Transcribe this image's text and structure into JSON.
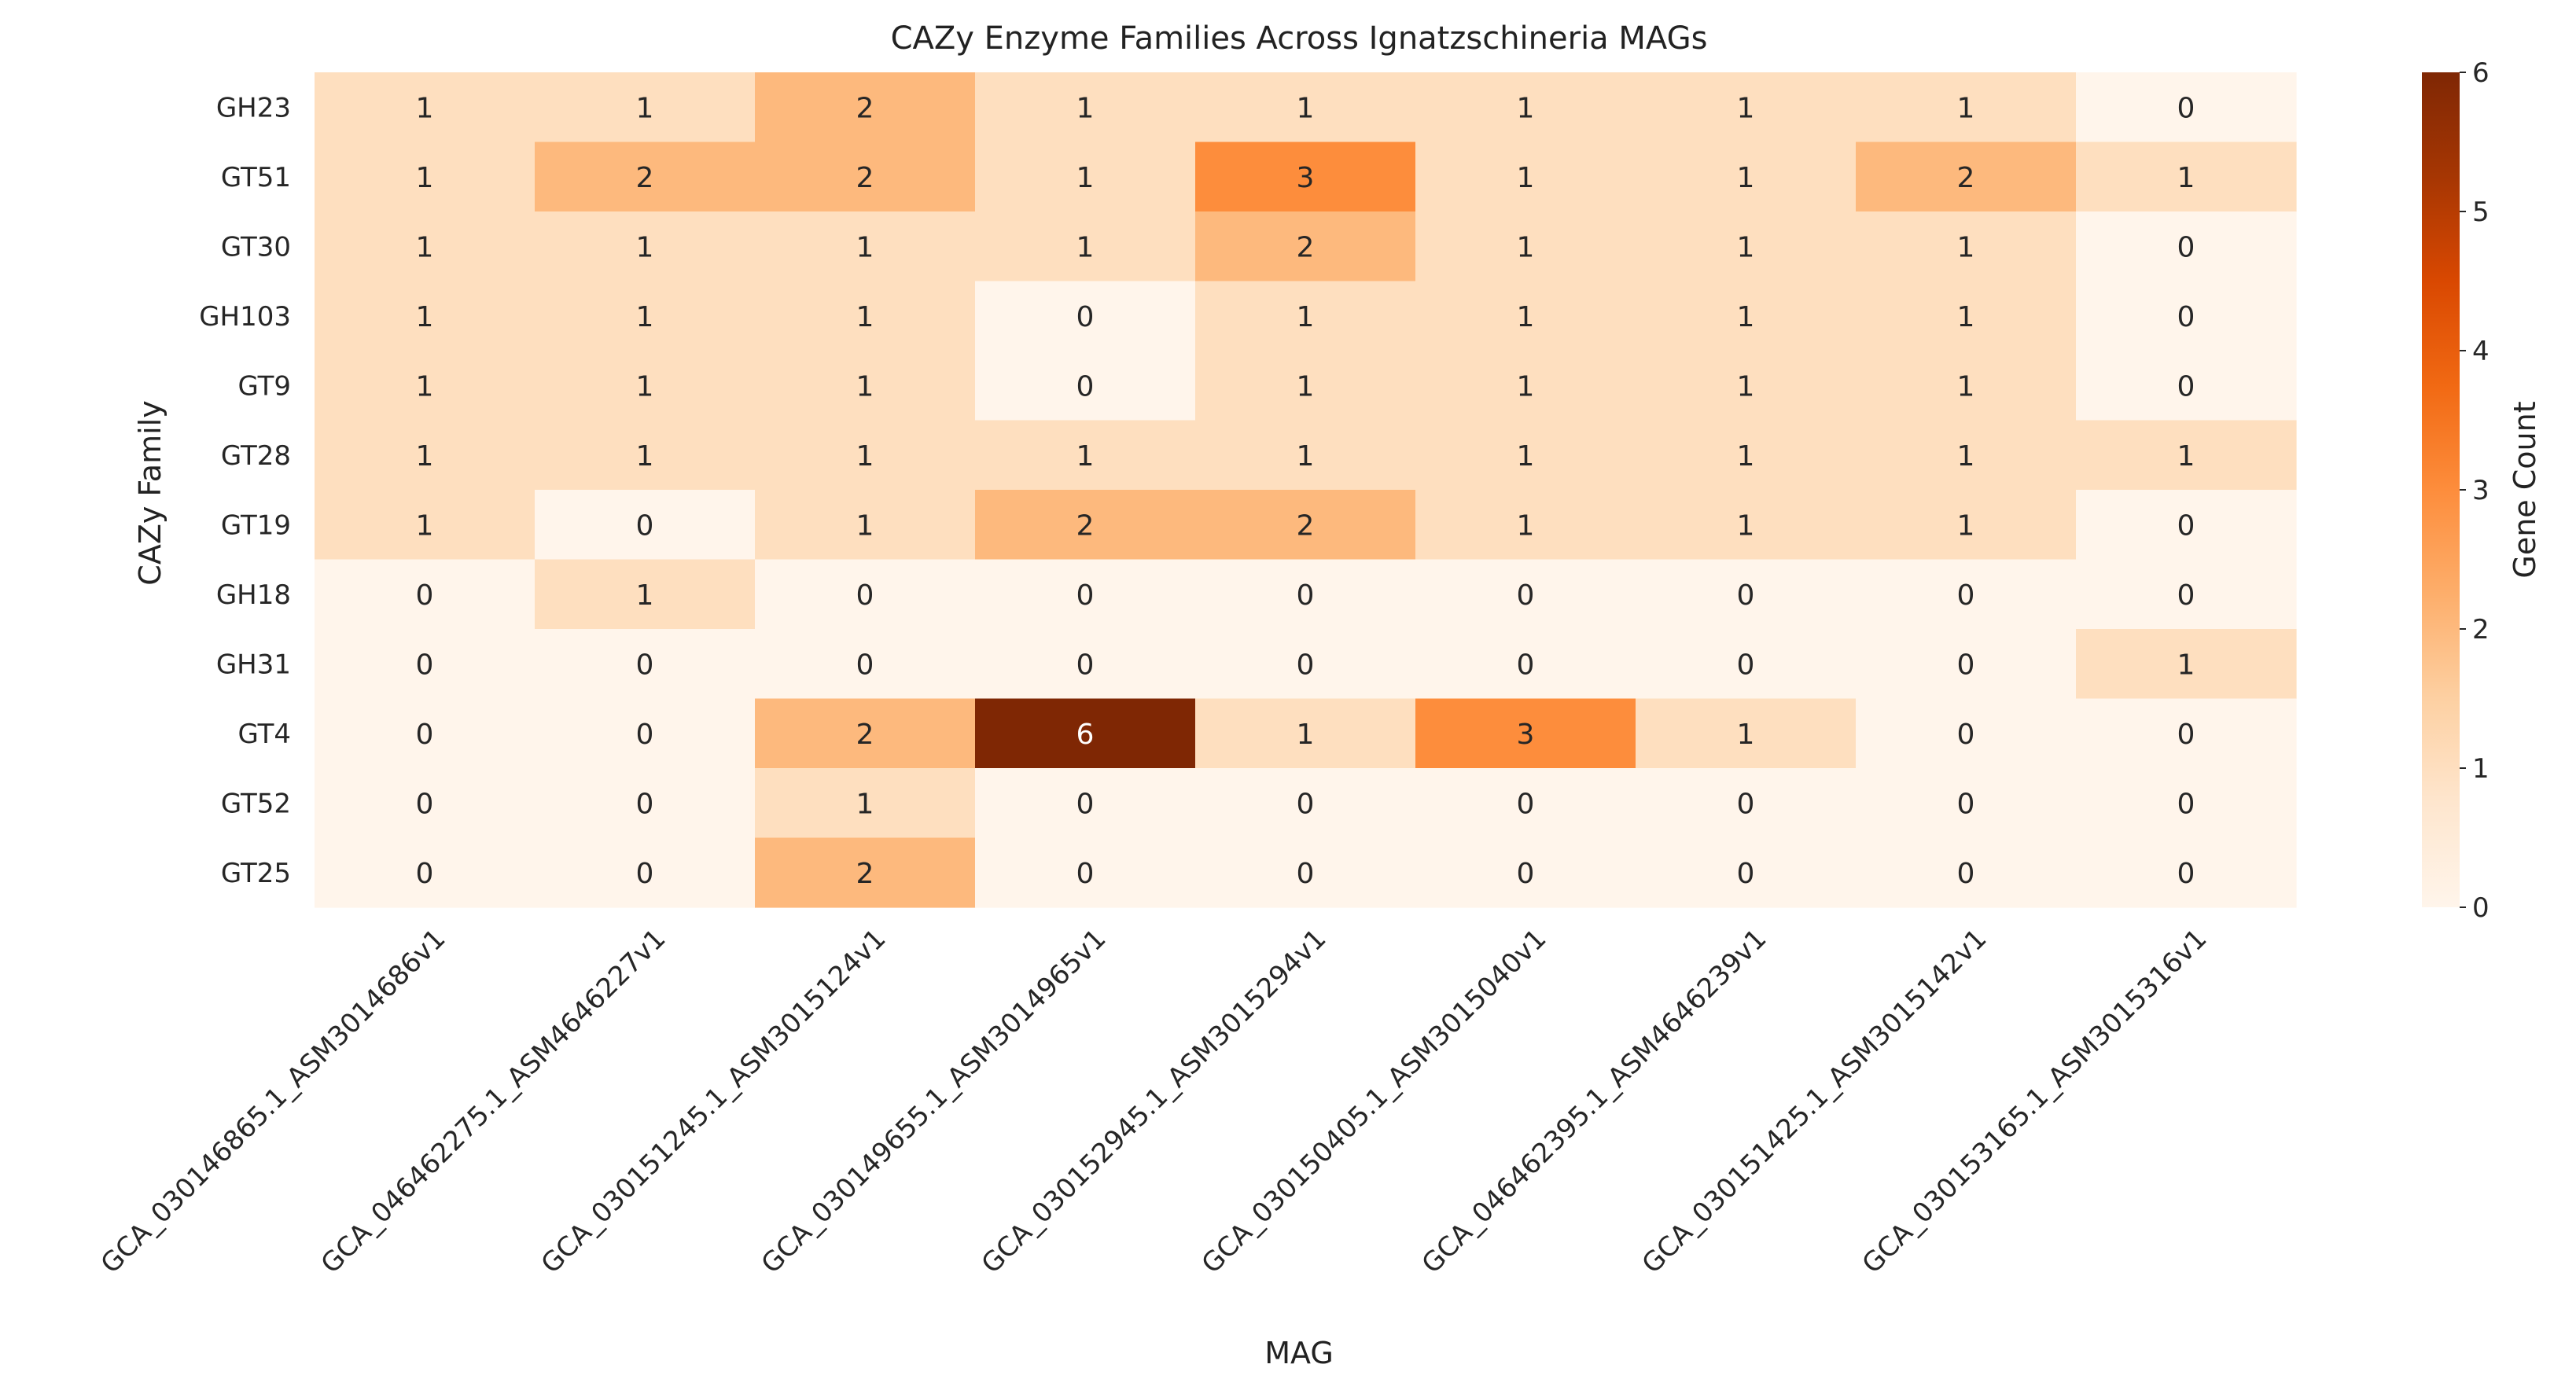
{
  "chart_data": {
    "type": "heatmap",
    "title": "CAZy Enzyme Families Across Ignatzschineria MAGs",
    "xlabel": "MAG",
    "ylabel": "CAZy Family",
    "colorbar_label": "Gene Count",
    "colormap": "Oranges",
    "vmin": 0,
    "vmax": 6,
    "colorbar_ticks": [
      0,
      1,
      2,
      3,
      4,
      5,
      6
    ],
    "columns": [
      "GCA_030146865.1_ASM3014686v1",
      "GCA_046462275.1_ASM4646227v1",
      "GCA_030151245.1_ASM3015124v1",
      "GCA_030149655.1_ASM3014965v1",
      "GCA_030152945.1_ASM3015294v1",
      "GCA_030150405.1_ASM3015040v1",
      "GCA_046462395.1_ASM4646239v1",
      "GCA_030151425.1_ASM3015142v1",
      "GCA_030153165.1_ASM3015316v1"
    ],
    "rows": [
      "GH23",
      "GT51",
      "GT30",
      "GH103",
      "GT9",
      "GT28",
      "GT19",
      "GH18",
      "GH31",
      "GT4",
      "GT52",
      "GT25"
    ],
    "values": [
      [
        1,
        1,
        2,
        1,
        1,
        1,
        1,
        1,
        0
      ],
      [
        1,
        2,
        2,
        1,
        3,
        1,
        1,
        2,
        1
      ],
      [
        1,
        1,
        1,
        1,
        2,
        1,
        1,
        1,
        0
      ],
      [
        1,
        1,
        1,
        0,
        1,
        1,
        1,
        1,
        0
      ],
      [
        1,
        1,
        1,
        0,
        1,
        1,
        1,
        1,
        0
      ],
      [
        1,
        1,
        1,
        1,
        1,
        1,
        1,
        1,
        1
      ],
      [
        1,
        0,
        1,
        2,
        2,
        1,
        1,
        1,
        0
      ],
      [
        0,
        1,
        0,
        0,
        0,
        0,
        0,
        0,
        0
      ],
      [
        0,
        0,
        0,
        0,
        0,
        0,
        0,
        0,
        1
      ],
      [
        0,
        0,
        2,
        6,
        1,
        3,
        1,
        0,
        0
      ],
      [
        0,
        0,
        1,
        0,
        0,
        0,
        0,
        0,
        0
      ],
      [
        0,
        0,
        2,
        0,
        0,
        0,
        0,
        0,
        0
      ]
    ],
    "grid": false,
    "annotations": true
  }
}
